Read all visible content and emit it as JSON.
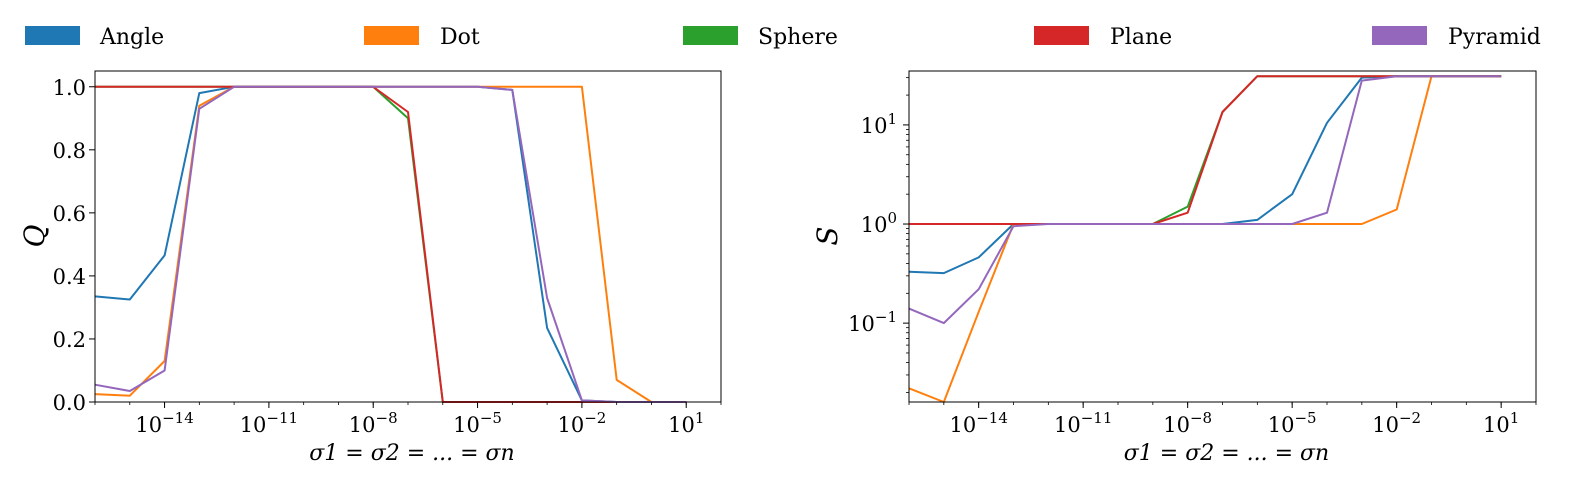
{
  "legend": [
    {
      "label": "Angle",
      "color": "#1f77b4"
    },
    {
      "label": "Dot",
      "color": "#ff7f0e"
    },
    {
      "label": "Sphere",
      "color": "#2ca02c"
    },
    {
      "label": "Plane",
      "color": "#d62728"
    },
    {
      "label": "Pyramid",
      "color": "#9467bd"
    }
  ],
  "chart_data": [
    {
      "type": "line",
      "xscale": "log",
      "yscale": "linear",
      "xlabel": "σ1 = σ2 = ... = σn",
      "ylabel": "Q",
      "xlim": [
        1e-16,
        100.0
      ],
      "ylim": [
        0,
        1.05
      ],
      "xticks": [
        1e-14,
        1e-11,
        1e-08,
        1e-05,
        0.01,
        10.0
      ],
      "xtick_labels": [
        {
          "base": "10",
          "exp": "−14"
        },
        {
          "base": "10",
          "exp": "−11"
        },
        {
          "base": "10",
          "exp": "−8"
        },
        {
          "base": "10",
          "exp": "−5"
        },
        {
          "base": "10",
          "exp": "−2"
        },
        {
          "base": "10",
          "exp": "1"
        }
      ],
      "yticks": [
        0.0,
        0.2,
        0.4,
        0.6,
        0.8,
        1.0
      ],
      "ytick_labels": [
        "0.0",
        "0.2",
        "0.4",
        "0.6",
        "0.8",
        "1.0"
      ],
      "x": [
        1e-16,
        1e-15,
        1e-14,
        1e-13,
        1e-12,
        1e-11,
        1e-10,
        1e-09,
        1e-08,
        1e-07,
        1e-06,
        1e-05,
        0.0001,
        0.001,
        0.01,
        0.1,
        1.0,
        10.0
      ],
      "series": [
        {
          "name": "Angle",
          "color": "#1f77b4",
          "values": [
            0.335,
            0.325,
            0.465,
            0.98,
            1.0,
            1.0,
            1.0,
            1.0,
            1.0,
            1.0,
            1.0,
            1.0,
            0.99,
            0.235,
            0.005,
            0.0,
            0.0,
            0.0
          ]
        },
        {
          "name": "Dot",
          "color": "#ff7f0e",
          "values": [
            0.025,
            0.02,
            0.13,
            0.94,
            1.0,
            1.0,
            1.0,
            1.0,
            1.0,
            1.0,
            1.0,
            1.0,
            1.0,
            1.0,
            1.0,
            0.07,
            0.0,
            0.0
          ]
        },
        {
          "name": "Sphere",
          "color": "#2ca02c",
          "values": [
            1.0,
            1.0,
            1.0,
            1.0,
            1.0,
            1.0,
            1.0,
            1.0,
            1.0,
            0.9,
            0.0,
            0.0,
            0.0,
            0.0,
            0.0,
            0.0,
            0.0,
            0.0
          ]
        },
        {
          "name": "Plane",
          "color": "#d62728",
          "values": [
            1.0,
            1.0,
            1.0,
            1.0,
            1.0,
            1.0,
            1.0,
            1.0,
            1.0,
            0.92,
            0.0,
            0.0,
            0.0,
            0.0,
            0.0,
            0.0,
            0.0,
            0.0
          ]
        },
        {
          "name": "Pyramid",
          "color": "#9467bd",
          "values": [
            0.055,
            0.035,
            0.1,
            0.93,
            1.0,
            1.0,
            1.0,
            1.0,
            1.0,
            1.0,
            1.0,
            1.0,
            0.99,
            0.33,
            0.005,
            0.0,
            0.0,
            0.0
          ]
        }
      ]
    },
    {
      "type": "line",
      "xscale": "log",
      "yscale": "log",
      "xlabel": "σ1 = σ2 = ... = σn",
      "ylabel": "S",
      "xlim": [
        1e-16,
        100.0
      ],
      "ylim": [
        0.016,
        35
      ],
      "xticks": [
        1e-14,
        1e-11,
        1e-08,
        1e-05,
        0.01,
        10.0
      ],
      "xtick_labels": [
        {
          "base": "10",
          "exp": "−14"
        },
        {
          "base": "10",
          "exp": "−11"
        },
        {
          "base": "10",
          "exp": "−8"
        },
        {
          "base": "10",
          "exp": "−5"
        },
        {
          "base": "10",
          "exp": "−2"
        },
        {
          "base": "10",
          "exp": "1"
        }
      ],
      "yticks": [
        0.1,
        1,
        10
      ],
      "ytick_labels": [
        {
          "base": "10",
          "exp": "−1"
        },
        {
          "base": "10",
          "exp": "0"
        },
        {
          "base": "10",
          "exp": "1"
        }
      ],
      "x": [
        1e-16,
        1e-15,
        1e-14,
        1e-13,
        1e-12,
        1e-11,
        1e-10,
        1e-09,
        1e-08,
        1e-07,
        1e-06,
        1e-05,
        0.0001,
        0.001,
        0.01,
        0.1,
        1.0,
        10.0
      ],
      "series": [
        {
          "name": "Angle",
          "color": "#1f77b4",
          "values": [
            0.33,
            0.32,
            0.46,
            1.0,
            1.0,
            1.0,
            1.0,
            1.0,
            1.0,
            1.0,
            1.1,
            2.0,
            10.5,
            30.0,
            31.0,
            31.0,
            31.0,
            31.0
          ]
        },
        {
          "name": "Dot",
          "color": "#ff7f0e",
          "values": [
            0.022,
            0.016,
            0.13,
            1.0,
            1.0,
            1.0,
            1.0,
            1.0,
            1.0,
            1.0,
            1.0,
            1.0,
            1.0,
            1.0,
            1.4,
            31.0,
            31.0,
            31.0
          ]
        },
        {
          "name": "Sphere",
          "color": "#2ca02c",
          "values": [
            1.0,
            1.0,
            1.0,
            1.0,
            1.0,
            1.0,
            1.0,
            1.0,
            1.5,
            13.5,
            31.0,
            31.0,
            31.0,
            31.0,
            31.0,
            31.0,
            31.0,
            31.0
          ]
        },
        {
          "name": "Plane",
          "color": "#d62728",
          "values": [
            1.0,
            1.0,
            1.0,
            1.0,
            1.0,
            1.0,
            1.0,
            1.0,
            1.3,
            13.5,
            31.0,
            31.0,
            31.0,
            31.0,
            31.0,
            31.0,
            31.0,
            31.0
          ]
        },
        {
          "name": "Pyramid",
          "color": "#9467bd",
          "values": [
            0.14,
            0.1,
            0.22,
            0.95,
            1.0,
            1.0,
            1.0,
            1.0,
            1.0,
            1.0,
            1.0,
            1.0,
            1.3,
            28.0,
            31.0,
            31.0,
            31.0,
            31.0
          ]
        }
      ]
    }
  ]
}
